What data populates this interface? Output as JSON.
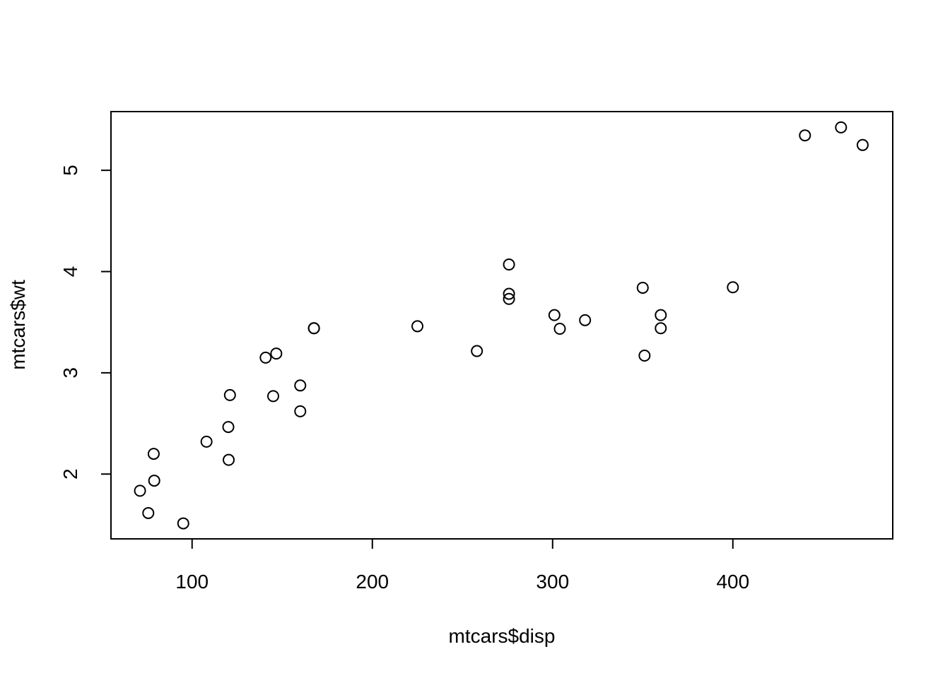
{
  "chart_data": {
    "type": "scatter",
    "title": "",
    "xlabel": "mtcars$disp",
    "ylabel": "mtcars$wt",
    "xlim": [
      55.0,
      488.7
    ],
    "ylim": [
      1.36,
      5.58
    ],
    "x_ticks": [
      100,
      200,
      300,
      400
    ],
    "x_tick_labels": [
      "100",
      "200",
      "300",
      "400"
    ],
    "y_ticks": [
      2,
      3,
      4,
      5
    ],
    "y_tick_labels": [
      "2",
      "3",
      "4",
      "5"
    ],
    "grid": false,
    "legend": "none",
    "marker": "open-circle",
    "colors": {
      "point_stroke": "#000000",
      "axis": "#000000",
      "background": "#ffffff"
    },
    "points": [
      {
        "x": 160.0,
        "y": 2.62
      },
      {
        "x": 160.0,
        "y": 2.875
      },
      {
        "x": 108.0,
        "y": 2.32
      },
      {
        "x": 258.0,
        "y": 3.215
      },
      {
        "x": 360.0,
        "y": 3.44
      },
      {
        "x": 225.0,
        "y": 3.46
      },
      {
        "x": 360.0,
        "y": 3.57
      },
      {
        "x": 146.7,
        "y": 3.19
      },
      {
        "x": 140.8,
        "y": 3.15
      },
      {
        "x": 167.6,
        "y": 3.44
      },
      {
        "x": 167.6,
        "y": 3.44
      },
      {
        "x": 275.8,
        "y": 4.07
      },
      {
        "x": 275.8,
        "y": 3.73
      },
      {
        "x": 275.8,
        "y": 3.78
      },
      {
        "x": 472.0,
        "y": 5.25
      },
      {
        "x": 460.0,
        "y": 5.424
      },
      {
        "x": 440.0,
        "y": 5.345
      },
      {
        "x": 78.7,
        "y": 2.2
      },
      {
        "x": 75.7,
        "y": 1.615
      },
      {
        "x": 71.1,
        "y": 1.835
      },
      {
        "x": 120.1,
        "y": 2.465
      },
      {
        "x": 318.0,
        "y": 3.52
      },
      {
        "x": 304.0,
        "y": 3.435
      },
      {
        "x": 350.0,
        "y": 3.84
      },
      {
        "x": 400.0,
        "y": 3.845
      },
      {
        "x": 79.0,
        "y": 1.935
      },
      {
        "x": 120.3,
        "y": 2.14
      },
      {
        "x": 95.1,
        "y": 1.513
      },
      {
        "x": 351.0,
        "y": 3.17
      },
      {
        "x": 145.0,
        "y": 2.77
      },
      {
        "x": 301.0,
        "y": 3.57
      },
      {
        "x": 121.0,
        "y": 2.78
      }
    ]
  }
}
